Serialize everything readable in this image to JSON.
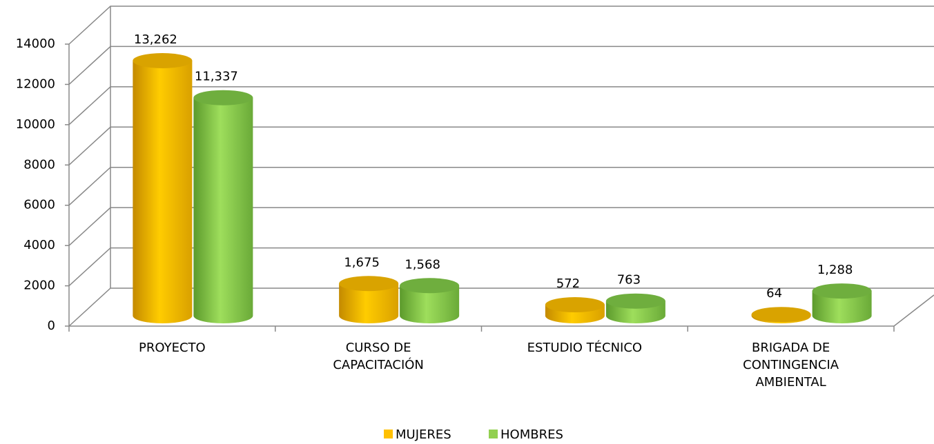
{
  "chart_data": {
    "type": "bar3d_cylinder",
    "categories": [
      "PROYECTO",
      "CURSO DE CAPACITACIÓN",
      "ESTUDIO TÉCNICO",
      "BRIGADA DE CONTINGENCIA AMBIENTAL"
    ],
    "series": [
      {
        "name": "MUJERES",
        "color": "#ffc000",
        "values": [
          13262,
          1675,
          572,
          64
        ],
        "value_labels": [
          "13,262",
          "1,675",
          "572",
          "64"
        ]
      },
      {
        "name": "HOMBRES",
        "color": "#92d050",
        "values": [
          11337,
          1568,
          763,
          1288
        ],
        "value_labels": [
          "11,337",
          "1,568",
          "763",
          "1,288"
        ]
      }
    ],
    "ylim": [
      0,
      14000
    ],
    "yticks": [
      0,
      2000,
      4000,
      6000,
      8000,
      10000,
      12000,
      14000
    ],
    "grid": true,
    "legend": "bottom"
  }
}
